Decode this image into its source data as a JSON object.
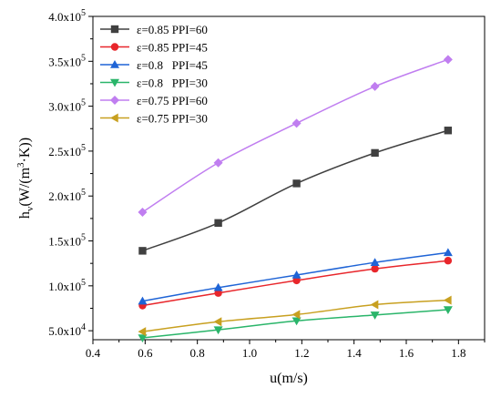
{
  "chart_data": {
    "type": "line",
    "xlabel": "u(m/s)",
    "ylabel": {
      "base": "h",
      "sub": "v",
      "pre": "(W/(m",
      "sup": "3",
      "post": "·K))"
    },
    "xlim": [
      0.4,
      1.9
    ],
    "ylim": [
      40000,
      400000
    ],
    "x_ticks": [
      0.4,
      0.6,
      0.8,
      1.0,
      1.2,
      1.4,
      1.6,
      1.8
    ],
    "x_tick_labels": [
      "0.4",
      "0.6",
      "0.8",
      "1.0",
      "1.2",
      "1.4",
      "1.6",
      "1.8"
    ],
    "y_ticks": [
      {
        "value": 50000,
        "mant": "5.0x10",
        "exp": "4"
      },
      {
        "value": 100000,
        "mant": "1.0x10",
        "exp": "5"
      },
      {
        "value": 150000,
        "mant": "1.5x10",
        "exp": "5"
      },
      {
        "value": 200000,
        "mant": "2.0x10",
        "exp": "5"
      },
      {
        "value": 250000,
        "mant": "2.5x10",
        "exp": "5"
      },
      {
        "value": 300000,
        "mant": "3.0x10",
        "exp": "5"
      },
      {
        "value": 350000,
        "mant": "3.5x10",
        "exp": "5"
      },
      {
        "value": 400000,
        "mant": "4.0x10",
        "exp": "5"
      }
    ],
    "legend_position": "top-left",
    "grid": false,
    "x": [
      0.59,
      0.88,
      1.18,
      1.48,
      1.76
    ],
    "series": [
      {
        "name": "ε=0.85 PPI=60",
        "marker": "square",
        "color": "#404040",
        "values": [
          139000,
          170000,
          214000,
          248000,
          273000
        ]
      },
      {
        "name": "ε=0.85 PPI=45",
        "marker": "circle",
        "color": "#e8262b",
        "values": [
          78000,
          92000,
          106000,
          119000,
          128000
        ]
      },
      {
        "name": "ε=0.8   PPI=45",
        "marker": "triangle-up",
        "color": "#1f64d6",
        "values": [
          83000,
          98000,
          112000,
          126000,
          137000
        ]
      },
      {
        "name": "ε=0.8   PPI=30",
        "marker": "triangle-down",
        "color": "#2ab56a",
        "values": [
          42000,
          51000,
          61000,
          67500,
          73500
        ]
      },
      {
        "name": "ε=0.75 PPI=60",
        "marker": "diamond",
        "color": "#c07ef0",
        "values": [
          182000,
          237000,
          281000,
          322000,
          352000
        ]
      },
      {
        "name": "ε=0.75 PPI=30",
        "marker": "triangle-left",
        "color": "#c8a020",
        "values": [
          49000,
          60000,
          68000,
          79000,
          84000
        ]
      }
    ]
  }
}
